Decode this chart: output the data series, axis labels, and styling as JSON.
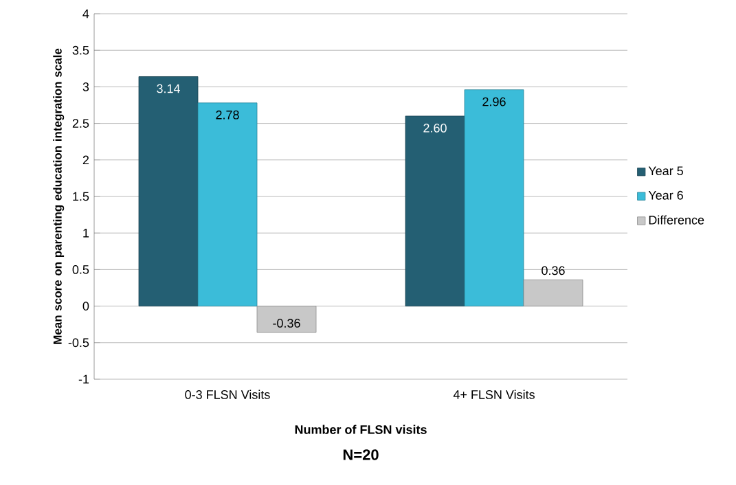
{
  "chart_data": {
    "type": "bar",
    "ylabel": "Mean score on parenting education integration scale",
    "xlabel": "Number of FLSN visits",
    "annotations": [
      "N=20"
    ],
    "categories": [
      "0-3 FLSN Visits",
      "4+ FLSN Visits"
    ],
    "series": [
      {
        "name": "Year 5",
        "color": "#245f73",
        "values": [
          3.14,
          2.6
        ],
        "value_labels": [
          "3.14",
          "2.60"
        ]
      },
      {
        "name": "Year 6",
        "color": "#3bbcd9",
        "values": [
          2.78,
          2.96
        ],
        "value_labels": [
          "2.78",
          "2.96"
        ]
      },
      {
        "name": "Difference",
        "color": "#c8c8c8",
        "values": [
          -0.36,
          0.36
        ],
        "value_labels": [
          "-0.36",
          "0.36"
        ]
      }
    ],
    "ylim": [
      -1,
      4
    ],
    "yticks": [
      -1,
      -0.5,
      0,
      0.5,
      1,
      1.5,
      2,
      2.5,
      3,
      3.5,
      4
    ],
    "grid": "y",
    "legend": "right"
  }
}
